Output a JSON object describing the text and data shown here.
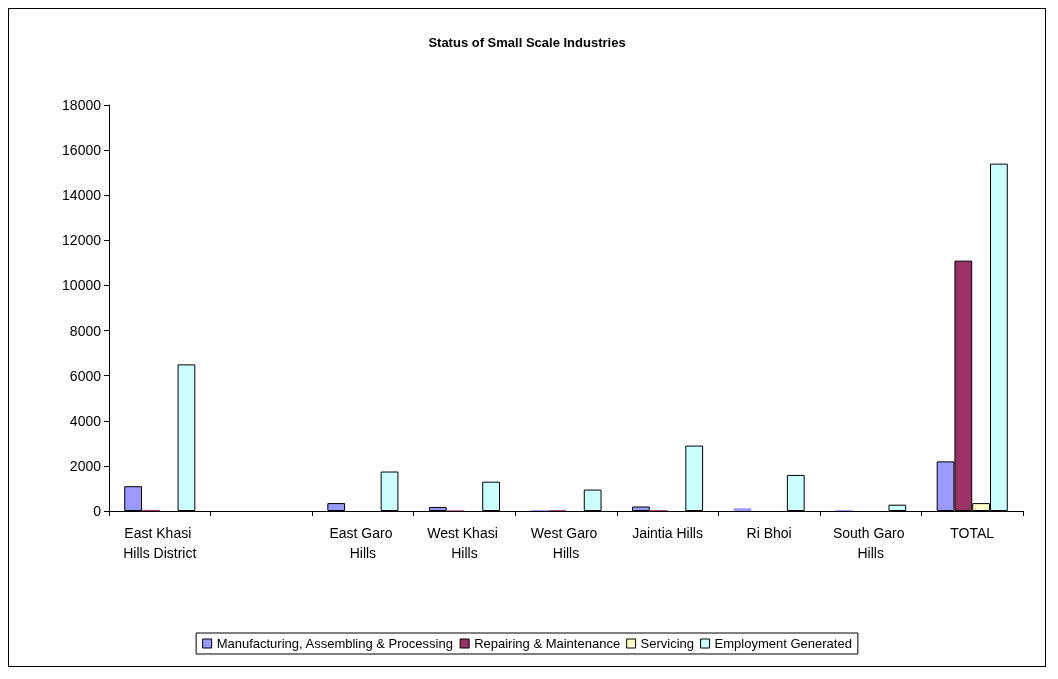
{
  "chart_data": {
    "type": "bar",
    "title": "Status of Small Scale Industries",
    "categories": [
      "East Khasi Hills District",
      null,
      "East Garo Hills",
      "West Khasi Hills",
      "West Garo Hills",
      "Jaintia Hills",
      "Ri Bhoi",
      "South Garo Hills",
      "TOTAL"
    ],
    "series": [
      {
        "name": "Manufacturing, Assembling & Processing",
        "color": "#9999ff",
        "values": [
          1100,
          null,
          350,
          180,
          40,
          200,
          120,
          40,
          2200
        ]
      },
      {
        "name": "Repairing & Maintenance",
        "color": "#993366",
        "values": [
          50,
          null,
          0,
          30,
          40,
          40,
          0,
          0,
          11100
        ]
      },
      {
        "name": "Servicing",
        "color": "#ffffcc",
        "values": [
          null,
          null,
          0,
          0,
          0,
          0,
          0,
          0,
          350
        ]
      },
      {
        "name": "Employment Generated",
        "color": "#ccffff",
        "values": [
          6500,
          null,
          1750,
          1300,
          950,
          2900,
          1600,
          280,
          15400
        ]
      }
    ],
    "ylim": [
      0,
      18000
    ],
    "yticks": [
      0,
      2000,
      4000,
      6000,
      8000,
      10000,
      12000,
      14000,
      16000,
      18000
    ],
    "grid": false,
    "legend": "bottom"
  }
}
